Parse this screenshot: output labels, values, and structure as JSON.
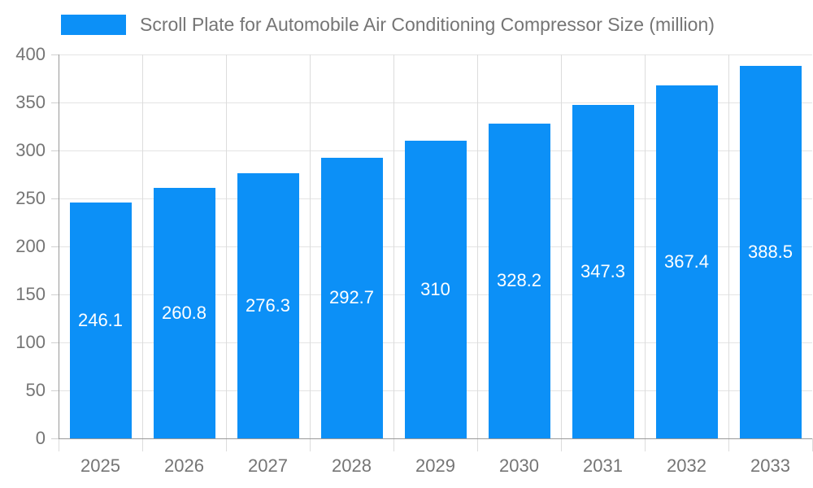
{
  "chart_data": {
    "type": "bar",
    "title": "Scroll Plate for Automobile Air Conditioning Compressor Size (million)",
    "categories": [
      "2025",
      "2026",
      "2027",
      "2028",
      "2029",
      "2030",
      "2031",
      "2032",
      "2033"
    ],
    "series": [
      {
        "name": "Scroll Plate for Automobile Air Conditioning Compressor Size (million)",
        "values": [
          246.1,
          260.8,
          276.3,
          292.7,
          310,
          328.2,
          347.3,
          367.4,
          388.5
        ]
      }
    ],
    "value_labels": [
      "246.1",
      "260.8",
      "276.3",
      "292.7",
      "310",
      "328.2",
      "347.3",
      "367.4",
      "388.5"
    ],
    "xlabel": "",
    "ylabel": "",
    "ylim": [
      0,
      400
    ],
    "yticks": [
      0,
      50,
      100,
      150,
      200,
      250,
      300,
      350,
      400
    ],
    "grid": true,
    "legend_position": "top-left",
    "colors": {
      "bar": "#0c90f7",
      "title_text": "#757575",
      "axis_text": "#757575",
      "value_label_text": "#ffffff",
      "gridline_h": "#e4e4e4",
      "gridline_v": "#dcdcdc",
      "tick": "#d0d0d0",
      "axis_line": "#999999",
      "background": "#ffffff"
    }
  }
}
